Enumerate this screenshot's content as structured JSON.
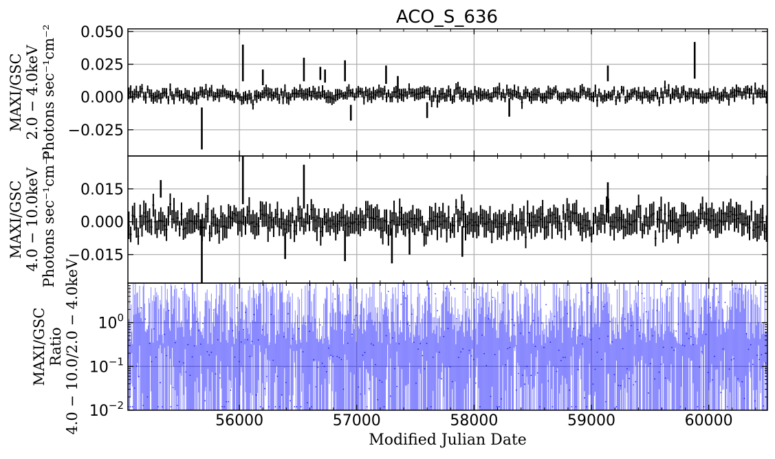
{
  "chart_data": {
    "type": "line",
    "title": "ACO_S_636",
    "xlabel": "Modified Julian Date",
    "xlim": [
      55050,
      60500
    ],
    "xticks": [
      "56000",
      "57000",
      "58000",
      "59000",
      "60000"
    ],
    "grid": true,
    "panels": [
      {
        "ylabel_lines": [
          "MAXI/GSC",
          "2.0 − 4.0keV",
          "Photons sec⁻¹cm⁻²"
        ],
        "ylim": [
          -0.045,
          0.052
        ],
        "yticks": [
          "0.050",
          "0.025",
          "0.000",
          "−0.025"
        ],
        "ytick_values": [
          0.05,
          0.025,
          0.0,
          -0.025
        ],
        "color": "#000000",
        "series_kind": "errorbar",
        "typical_error": 0.004,
        "highlights": [
          {
            "x": 55680,
            "y": -0.024,
            "err": 0.016
          },
          {
            "x": 56030,
            "y": 0.026,
            "err": 0.014
          },
          {
            "x": 56200,
            "y": 0.015,
            "err": 0.006
          },
          {
            "x": 56550,
            "y": 0.021,
            "err": 0.009
          },
          {
            "x": 56690,
            "y": 0.018,
            "err": 0.005
          },
          {
            "x": 56730,
            "y": 0.016,
            "err": 0.005
          },
          {
            "x": 56900,
            "y": 0.02,
            "err": 0.008
          },
          {
            "x": 56950,
            "y": -0.012,
            "err": 0.006
          },
          {
            "x": 57250,
            "y": 0.017,
            "err": 0.007
          },
          {
            "x": 57350,
            "y": 0.01,
            "err": 0.006
          },
          {
            "x": 57600,
            "y": -0.01,
            "err": 0.006
          },
          {
            "x": 58300,
            "y": -0.008,
            "err": 0.007
          },
          {
            "x": 59140,
            "y": 0.018,
            "err": 0.006
          },
          {
            "x": 59880,
            "y": 0.028,
            "err": 0.014
          }
        ]
      },
      {
        "ylabel_lines": [
          "MAXI/GSC",
          "4.0 − 10.0keV",
          "Photons sec⁻¹cm⁻²"
        ],
        "ylim": [
          -0.028,
          0.03
        ],
        "yticks": [
          "0.015",
          "0.000",
          "−0.015"
        ],
        "ytick_values": [
          0.015,
          0.0,
          -0.015
        ],
        "color": "#000000",
        "series_kind": "errorbar",
        "typical_error": 0.005,
        "highlights": [
          {
            "x": 55330,
            "y": 0.015,
            "err": 0.004
          },
          {
            "x": 55680,
            "y": -0.014,
            "err": 0.015
          },
          {
            "x": 56030,
            "y": 0.02,
            "err": 0.012
          },
          {
            "x": 56390,
            "y": -0.011,
            "err": 0.006
          },
          {
            "x": 56550,
            "y": 0.016,
            "err": 0.01
          },
          {
            "x": 56900,
            "y": -0.011,
            "err": 0.007
          },
          {
            "x": 57300,
            "y": -0.011,
            "err": 0.008
          },
          {
            "x": 57450,
            "y": -0.009,
            "err": 0.006
          },
          {
            "x": 57900,
            "y": -0.009,
            "err": 0.007
          },
          {
            "x": 59140,
            "y": 0.011,
            "err": 0.007
          },
          {
            "x": 60500,
            "y": 0.01,
            "err": 0.011
          }
        ]
      },
      {
        "ylabel_lines": [
          "MAXI/GSC",
          "Ratio",
          "4.0 − 10.0/2.0 − 4.0keV"
        ],
        "yscale": "log",
        "ylim": [
          0.01,
          8
        ],
        "ytick_values": [
          0.01,
          0.1,
          1
        ],
        "ytick_bases": [
          "10",
          "10",
          "10"
        ],
        "ytick_exps": [
          "−2",
          "−1",
          "0"
        ],
        "color": "#0000ff",
        "series_kind": "errorbar"
      }
    ]
  }
}
